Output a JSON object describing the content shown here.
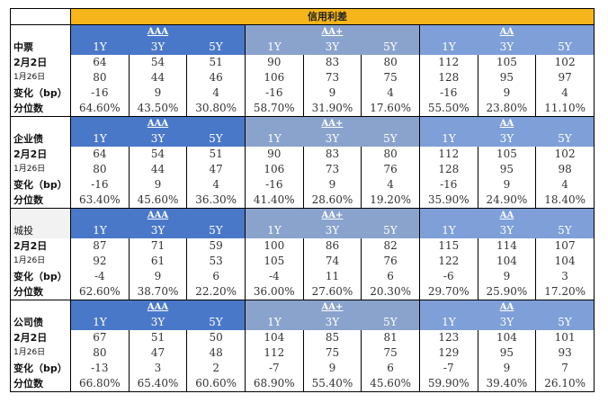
{
  "title": "信用利差",
  "ratings": [
    "AAA",
    "AA+",
    "AA"
  ],
  "tenors": [
    "1Y",
    "3Y",
    "5Y"
  ],
  "row_labels": [
    "2月2日",
    "1月26日",
    "变化（bp）",
    "分位数"
  ],
  "colors": {
    "title_bg": "#f6b51a",
    "AAA": "#4a78c9",
    "AA+": "#8aa3cc",
    "AA": "#7e9fd8"
  },
  "blocks": [
    {
      "name": "中票",
      "rows": [
        [
          "64",
          "54",
          "51",
          "90",
          "83",
          "80",
          "112",
          "105",
          "102"
        ],
        [
          "80",
          "44",
          "46",
          "106",
          "73",
          "75",
          "128",
          "95",
          "97"
        ],
        [
          "-16",
          "9",
          "4",
          "-16",
          "9",
          "4",
          "-16",
          "9",
          "4"
        ],
        [
          "64.60%",
          "43.50%",
          "30.80%",
          "58.70%",
          "31.90%",
          "17.60%",
          "55.50%",
          "23.80%",
          "11.10%"
        ]
      ]
    },
    {
      "name": "企业债",
      "rows": [
        [
          "64",
          "54",
          "51",
          "90",
          "83",
          "80",
          "112",
          "105",
          "102"
        ],
        [
          "80",
          "44",
          "47",
          "106",
          "73",
          "76",
          "128",
          "95",
          "98"
        ],
        [
          "-16",
          "9",
          "4",
          "-16",
          "9",
          "4",
          "-16",
          "9",
          "4"
        ],
        [
          "63.40%",
          "45.60%",
          "36.30%",
          "41.40%",
          "28.60%",
          "19.20%",
          "35.90%",
          "24.90%",
          "18.40%"
        ]
      ]
    },
    {
      "name": "城投",
      "rows": [
        [
          "87",
          "71",
          "59",
          "100",
          "86",
          "82",
          "115",
          "114",
          "107"
        ],
        [
          "92",
          "61",
          "53",
          "105",
          "74",
          "76",
          "122",
          "104",
          "104"
        ],
        [
          "-4",
          "9",
          "6",
          "-4",
          "11",
          "6",
          "-6",
          "9",
          "3"
        ],
        [
          "62.60%",
          "38.70%",
          "22.20%",
          "36.00%",
          "27.60%",
          "20.30%",
          "29.70%",
          "25.90%",
          "17.20%"
        ]
      ]
    },
    {
      "name": "公司债",
      "rows": [
        [
          "67",
          "51",
          "50",
          "104",
          "85",
          "81",
          "123",
          "104",
          "101"
        ],
        [
          "80",
          "47",
          "48",
          "112",
          "75",
          "75",
          "129",
          "95",
          "93"
        ],
        [
          "-13",
          "3",
          "2",
          "-7",
          "9",
          "6",
          "-7",
          "9",
          "7"
        ],
        [
          "66.80%",
          "65.40%",
          "60.60%",
          "68.90%",
          "55.40%",
          "45.60%",
          "59.90%",
          "39.40%",
          "26.10%"
        ]
      ]
    }
  ]
}
